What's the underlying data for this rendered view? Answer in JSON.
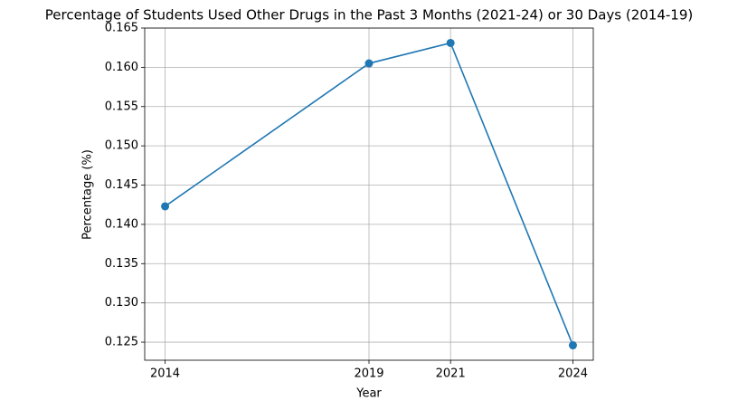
{
  "chart_data": {
    "type": "line",
    "title": "Percentage of Students Used Other Drugs in the Past 3 Months (2021-24) or 30 Days (2014-19)",
    "x_label": "Year",
    "y_label": "Percentage (%)",
    "x": [
      2014,
      2019,
      2021,
      2024
    ],
    "series": [
      {
        "color": "#1f77b4",
        "values": [
          0.1423,
          0.1605,
          0.1631,
          0.1246
        ]
      }
    ],
    "xlim": [
      2013.5,
      2024.5
    ],
    "xticks": [
      2014,
      2019,
      2021,
      2024
    ],
    "ylim": [
      0.1227,
      0.165
    ],
    "yticks": [
      0.125,
      {
        "value": 0.13,
        "label": "0.130"
      },
      0.135,
      {
        "value": 0.14,
        "label": "0.140"
      },
      0.145,
      {
        "value": 0.15,
        "label": "0.150"
      },
      0.155,
      {
        "value": 0.16,
        "label": "0.160"
      },
      0.165
    ],
    "grid": true
  }
}
